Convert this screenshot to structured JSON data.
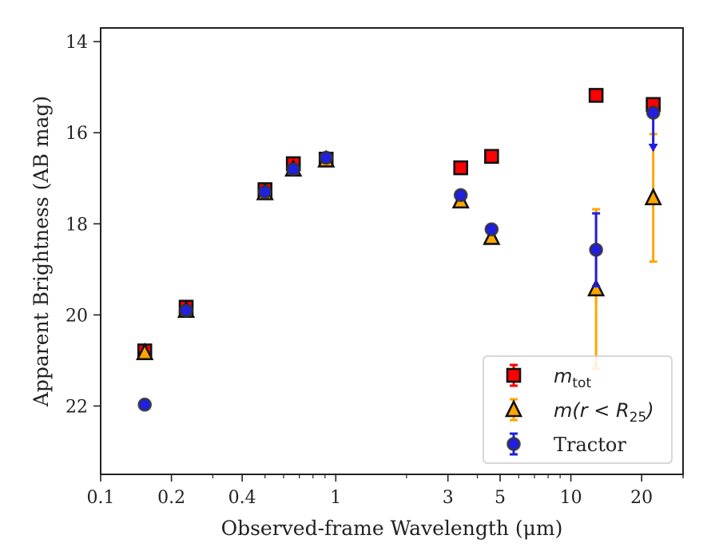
{
  "chart_data": {
    "type": "scatter",
    "xlabel": "Observed-frame Wavelength (μm)",
    "ylabel": "Apparent Brightness (AB mag)",
    "xscale": "log",
    "xlim": [
      0.1,
      30
    ],
    "ylim": [
      23.5,
      13.7
    ],
    "y_inverted": true,
    "x_ticks": [
      {
        "value": 0.1,
        "label": "0.1"
      },
      {
        "value": 0.2,
        "label": "0.2"
      },
      {
        "value": 0.4,
        "label": "0.4"
      },
      {
        "value": 1,
        "label": "1"
      },
      {
        "value": 3,
        "label": "3"
      },
      {
        "value": 5,
        "label": "5"
      },
      {
        "value": 10,
        "label": "10"
      },
      {
        "value": 20,
        "label": "20"
      }
    ],
    "y_ticks": [
      {
        "value": 14,
        "label": "14"
      },
      {
        "value": 16,
        "label": "16"
      },
      {
        "value": 18,
        "label": "18"
      },
      {
        "value": 20,
        "label": "20"
      },
      {
        "value": 22,
        "label": "22"
      }
    ],
    "grid": false,
    "legend_position": "lower-right",
    "series": [
      {
        "name": "m_tot",
        "legend_main": "m",
        "legend_sub": "tot",
        "marker": "square",
        "color": "#ff0000",
        "edge_color": "#111111",
        "err_color": "#ff0000",
        "points": [
          {
            "x": 0.154,
            "y": 20.79,
            "err": 0.1
          },
          {
            "x": 0.231,
            "y": 19.83,
            "err": 0.08
          },
          {
            "x": 0.5,
            "y": 17.25,
            "err": 0.05
          },
          {
            "x": 0.66,
            "y": 16.68,
            "err": 0.05
          },
          {
            "x": 0.91,
            "y": 16.58,
            "err": 0.05
          },
          {
            "x": 3.4,
            "y": 16.77,
            "err": 0.03
          },
          {
            "x": 4.6,
            "y": 16.52,
            "err": 0.03
          },
          {
            "x": 12.8,
            "y": 15.18,
            "err": 0.03
          },
          {
            "x": 22.4,
            "y": 15.38,
            "err": 0.05
          }
        ]
      },
      {
        "name": "m(r < R_25)",
        "legend_main": "m(r < R",
        "legend_sub": "25",
        "legend_tail": ")",
        "marker": "triangle",
        "color": "#ffa500",
        "edge_color": "#111111",
        "err_color": "#ffa500",
        "points": [
          {
            "x": 0.154,
            "y": 20.83,
            "err": 0.05
          },
          {
            "x": 0.231,
            "y": 19.9,
            "err": 0.05
          },
          {
            "x": 0.5,
            "y": 17.32,
            "err": 0.03
          },
          {
            "x": 0.66,
            "y": 16.8,
            "err": 0.03
          },
          {
            "x": 0.91,
            "y": 16.6,
            "err": 0.03
          },
          {
            "x": 3.4,
            "y": 17.5,
            "err": 0.03
          },
          {
            "x": 4.6,
            "y": 18.3,
            "err": 0.05
          },
          {
            "x": 12.8,
            "y": 19.43,
            "err": 1.75
          },
          {
            "x": 22.4,
            "y": 17.43,
            "err": 1.4
          }
        ]
      },
      {
        "name": "Tractor",
        "legend_main": "Tractor",
        "marker": "circle",
        "color": "#2020e0",
        "edge_color": "#333333",
        "err_color": "#2020e0",
        "points": [
          {
            "x": 0.154,
            "y": 21.97,
            "err": 0.05
          },
          {
            "x": 0.231,
            "y": 19.9,
            "err": 0.03
          },
          {
            "x": 0.5,
            "y": 17.3,
            "err": 0.03
          },
          {
            "x": 0.66,
            "y": 16.8,
            "err": 0.03
          },
          {
            "x": 0.91,
            "y": 16.55,
            "err": 0.03
          },
          {
            "x": 3.4,
            "y": 17.37,
            "err": 0.03
          },
          {
            "x": 4.6,
            "y": 18.12,
            "err": 0.05
          },
          {
            "x": 12.8,
            "y": 18.57,
            "err": 0.8
          },
          {
            "x": 22.4,
            "y": 15.56,
            "err": 0.0,
            "upper_limit_to": 16.4
          }
        ]
      }
    ]
  }
}
